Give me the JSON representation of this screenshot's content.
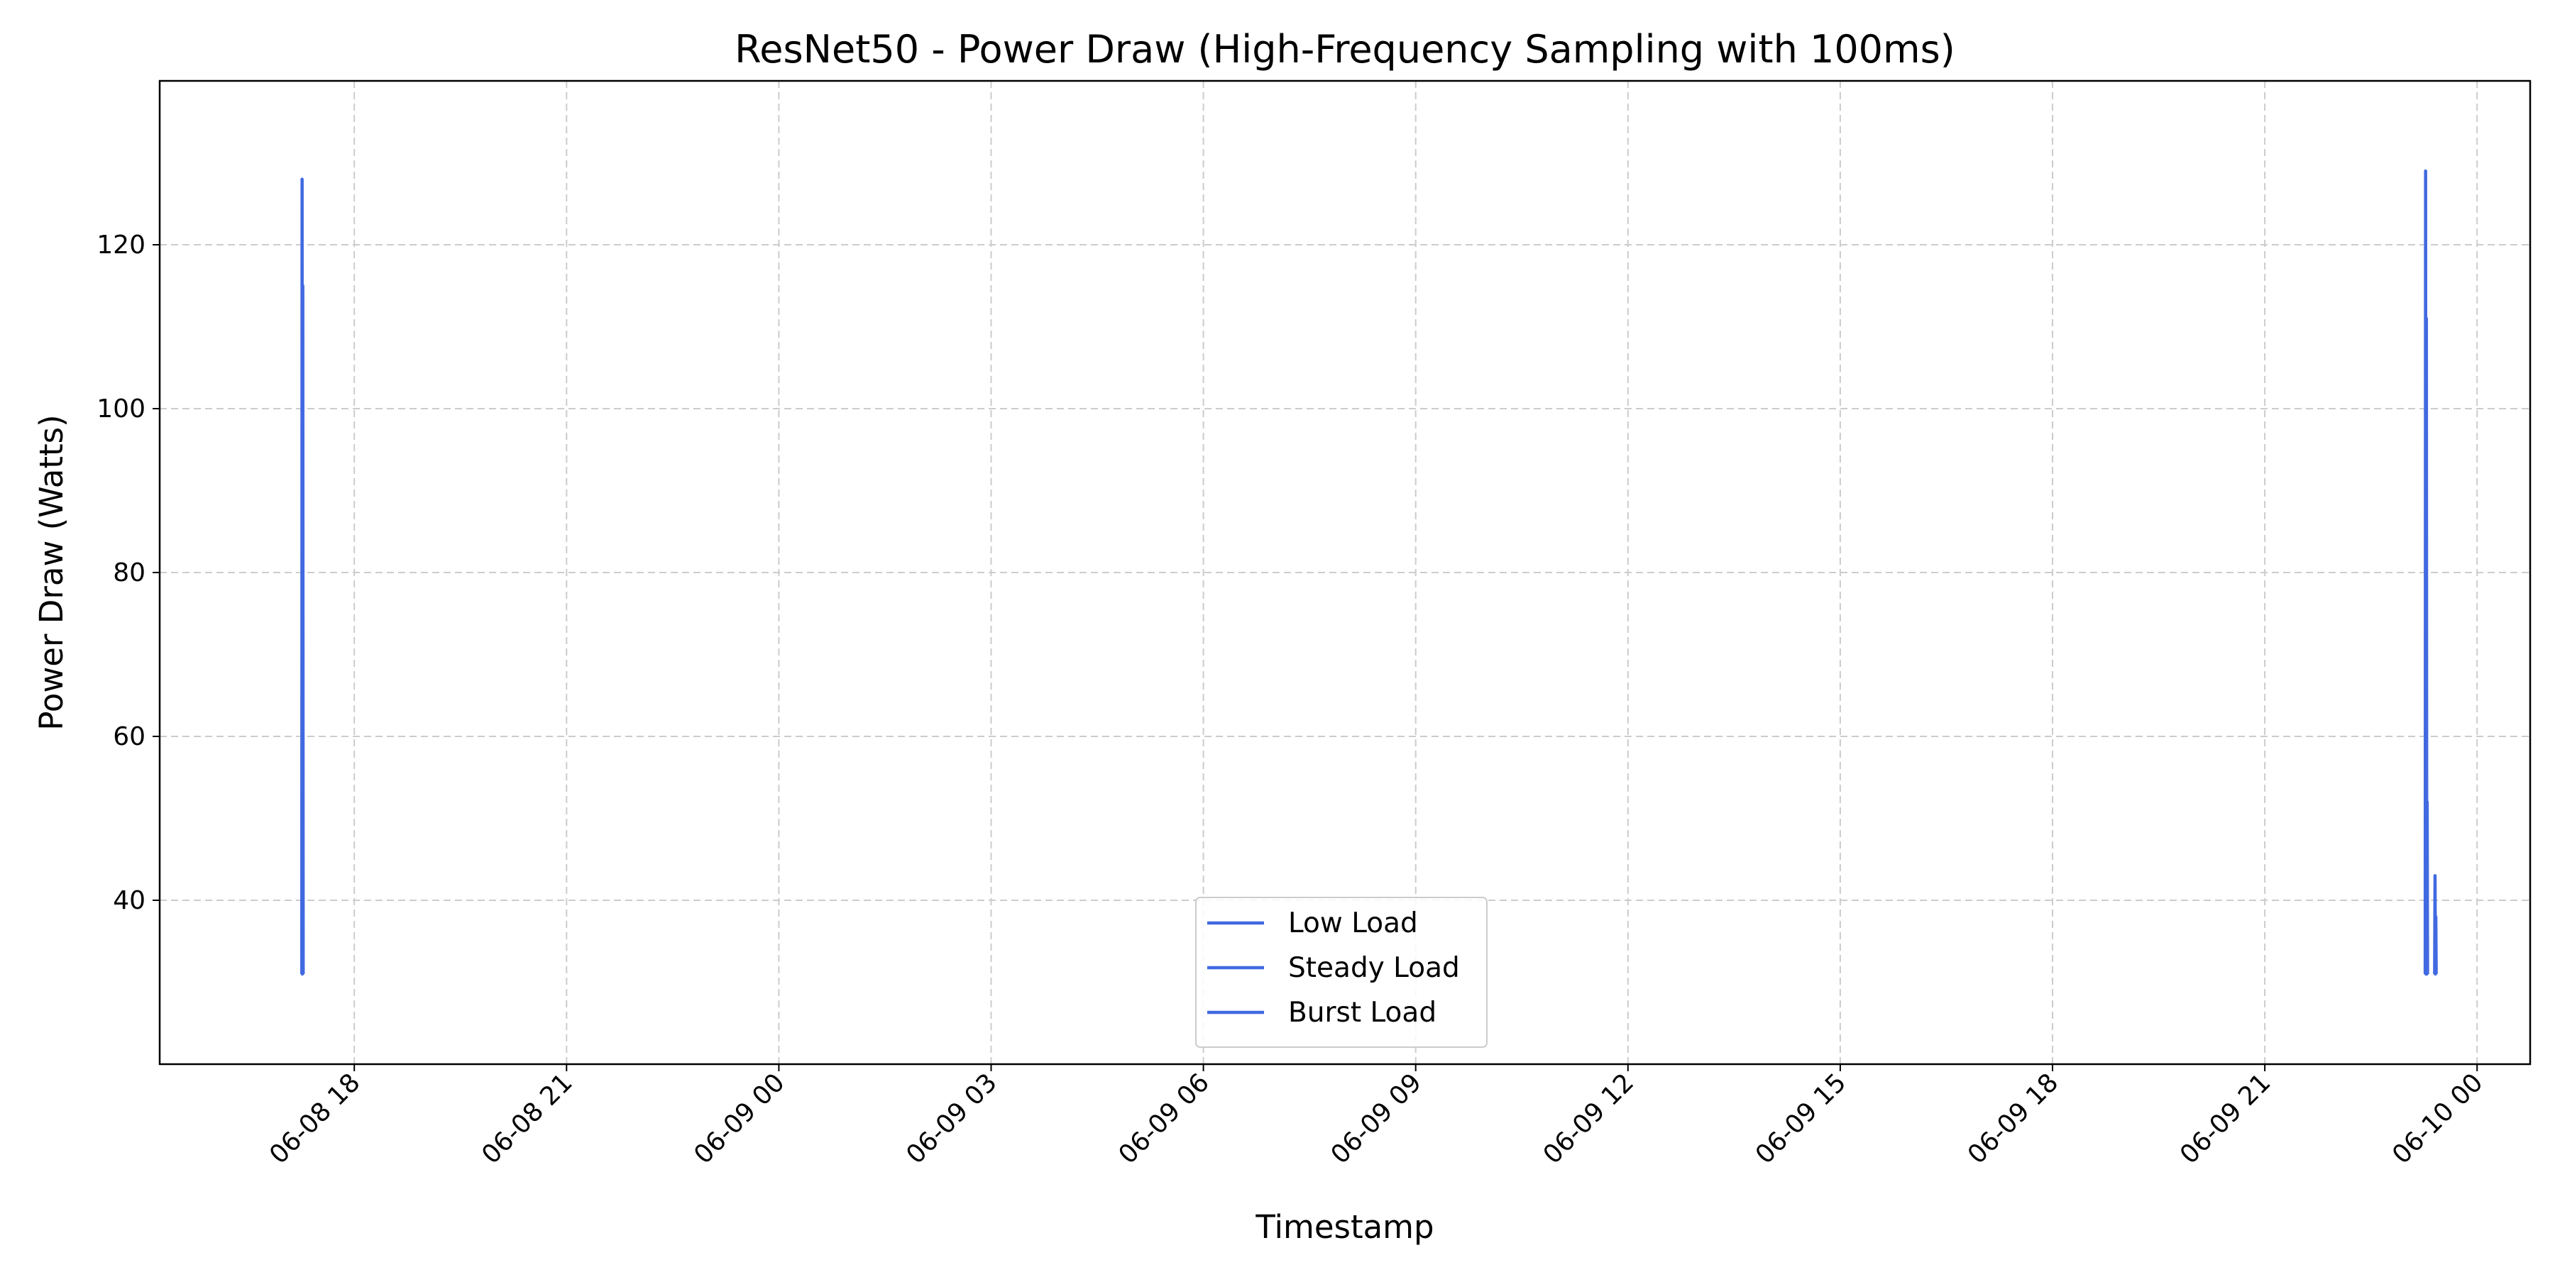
{
  "chart_data": {
    "type": "line",
    "title": "ResNet50 - Power Draw (High-Frequency Sampling with 100ms)",
    "xlabel": "Timestamp",
    "ylabel": "Power Draw (Watts)",
    "x_axis": "datetime",
    "xlim": [
      "2025-06-08 15:15",
      "2025-06-10 00:45"
    ],
    "ylim": [
      20,
      140
    ],
    "xticks": [
      {
        "value": "2025-06-08 18:00",
        "label": "06-08 18"
      },
      {
        "value": "2025-06-08 21:00",
        "label": "06-08 21"
      },
      {
        "value": "2025-06-09 00:00",
        "label": "06-09 00"
      },
      {
        "value": "2025-06-09 03:00",
        "label": "06-09 03"
      },
      {
        "value": "2025-06-09 06:00",
        "label": "06-09 06"
      },
      {
        "value": "2025-06-09 09:00",
        "label": "06-09 09"
      },
      {
        "value": "2025-06-09 12:00",
        "label": "06-09 12"
      },
      {
        "value": "2025-06-09 15:00",
        "label": "06-09 15"
      },
      {
        "value": "2025-06-09 18:00",
        "label": "06-09 18"
      },
      {
        "value": "2025-06-09 21:00",
        "label": "06-09 21"
      },
      {
        "value": "2025-06-10 00:00",
        "label": "06-10 00"
      }
    ],
    "yticks": [
      40,
      60,
      80,
      100,
      120
    ],
    "grid": true,
    "grid_style": "dashed",
    "legend_position": "lower center",
    "series": [
      {
        "name": "Low Load",
        "color": "#4169e1",
        "points": [
          {
            "x": "2025-06-08 17:15:30",
            "y": 31
          },
          {
            "x": "2025-06-08 17:15:45",
            "y": 128
          },
          {
            "x": "2025-06-08 17:16:00",
            "y": 31
          },
          {
            "x": "2025-06-08 17:16:20",
            "y": 115
          },
          {
            "x": "2025-06-08 17:16:40",
            "y": 31
          }
        ]
      },
      {
        "name": "Steady Load",
        "color": "#4169e1",
        "points": [
          {
            "x": "2025-06-09 23:16:00",
            "y": 31
          },
          {
            "x": "2025-06-09 23:16:20",
            "y": 129
          },
          {
            "x": "2025-06-09 23:16:40",
            "y": 31
          },
          {
            "x": "2025-06-09 23:17:00",
            "y": 111
          },
          {
            "x": "2025-06-09 23:17:20",
            "y": 31
          },
          {
            "x": "2025-06-09 23:17:40",
            "y": 52
          },
          {
            "x": "2025-06-09 23:18:00",
            "y": 31
          }
        ]
      },
      {
        "name": "Burst Load",
        "color": "#4169e1",
        "points": [
          {
            "x": "2025-06-09 23:24:00",
            "y": 31
          },
          {
            "x": "2025-06-09 23:24:20",
            "y": 43
          },
          {
            "x": "2025-06-09 23:24:40",
            "y": 31
          },
          {
            "x": "2025-06-09 23:25:00",
            "y": 38
          },
          {
            "x": "2025-06-09 23:25:20",
            "y": 31
          }
        ]
      }
    ]
  }
}
